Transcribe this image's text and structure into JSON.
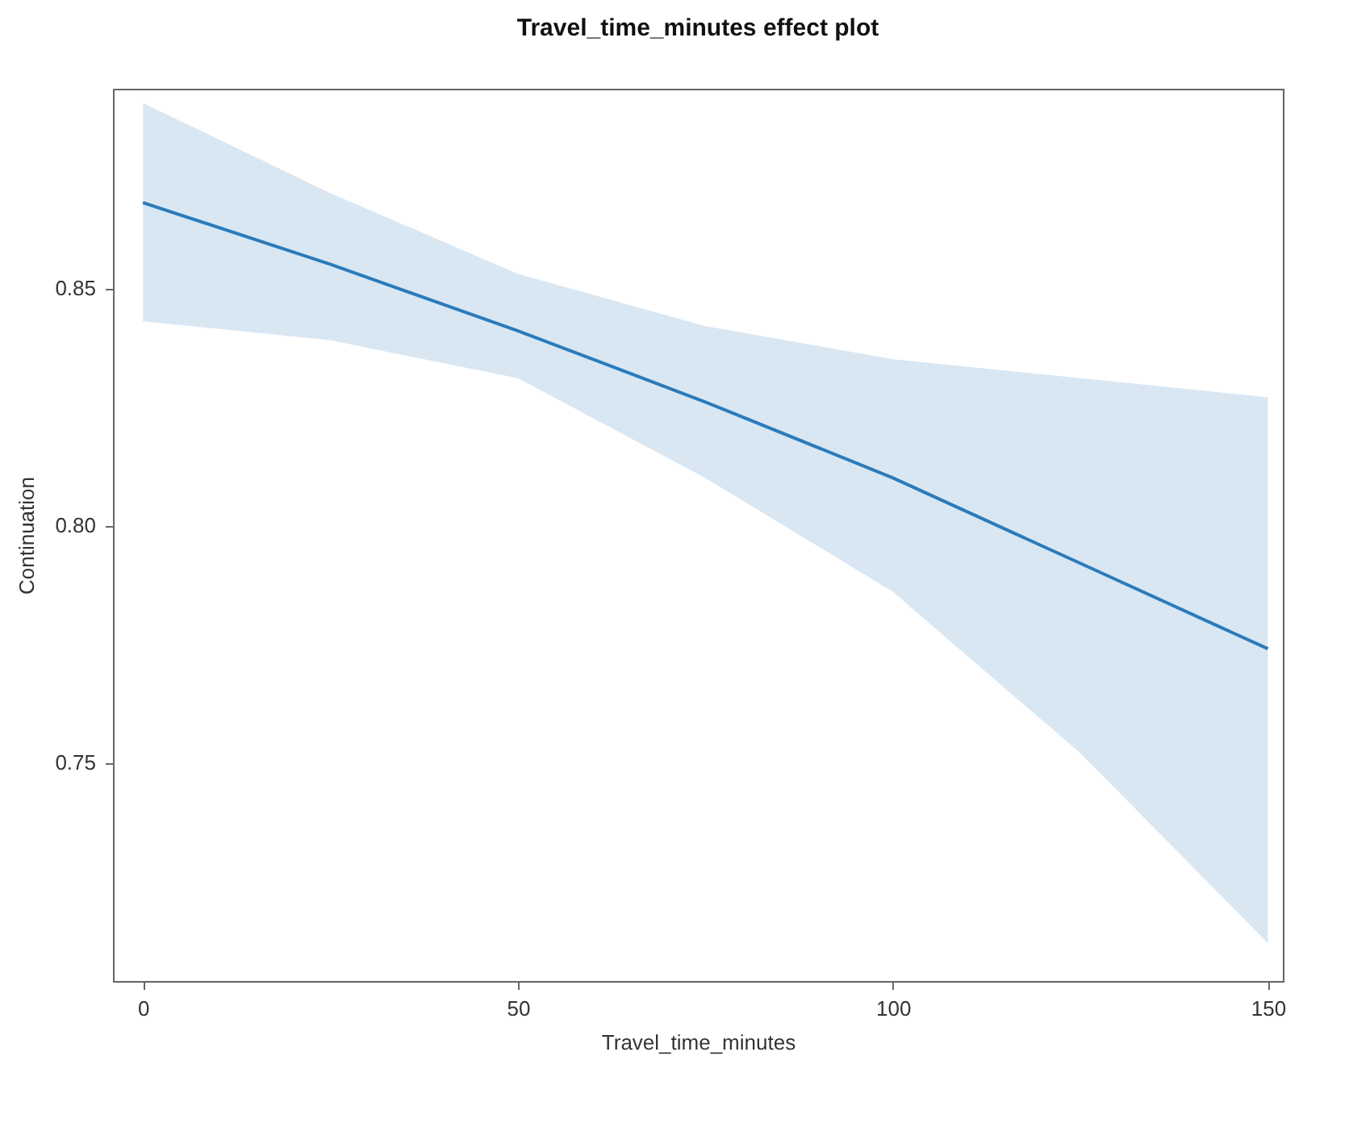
{
  "chart_data": {
    "type": "line",
    "title": "Travel_time_minutes effect plot",
    "xlabel": "Travel_time_minutes",
    "ylabel": "Continuation",
    "x": [
      0,
      25,
      50,
      75,
      100,
      125,
      150
    ],
    "series": [
      {
        "color": "#2b7bba",
        "values": [
          0.868,
          0.855,
          0.841,
          0.826,
          0.81,
          0.792,
          0.774
        ],
        "lower": [
          0.843,
          0.839,
          0.831,
          0.81,
          0.786,
          0.752,
          0.712
        ],
        "upper": [
          0.889,
          0.87,
          0.853,
          0.842,
          0.835,
          0.831,
          0.827
        ]
      }
    ],
    "xlim": [
      -4,
      152
    ],
    "xticks": [
      0,
      50,
      100,
      150
    ],
    "ylim": [
      0.704,
      0.892
    ],
    "yticks": [
      0.75,
      {
        "value": 0.8,
        "label": "0.80"
      },
      0.85
    ],
    "grid": false,
    "marker": "none",
    "line_style": "solid"
  }
}
